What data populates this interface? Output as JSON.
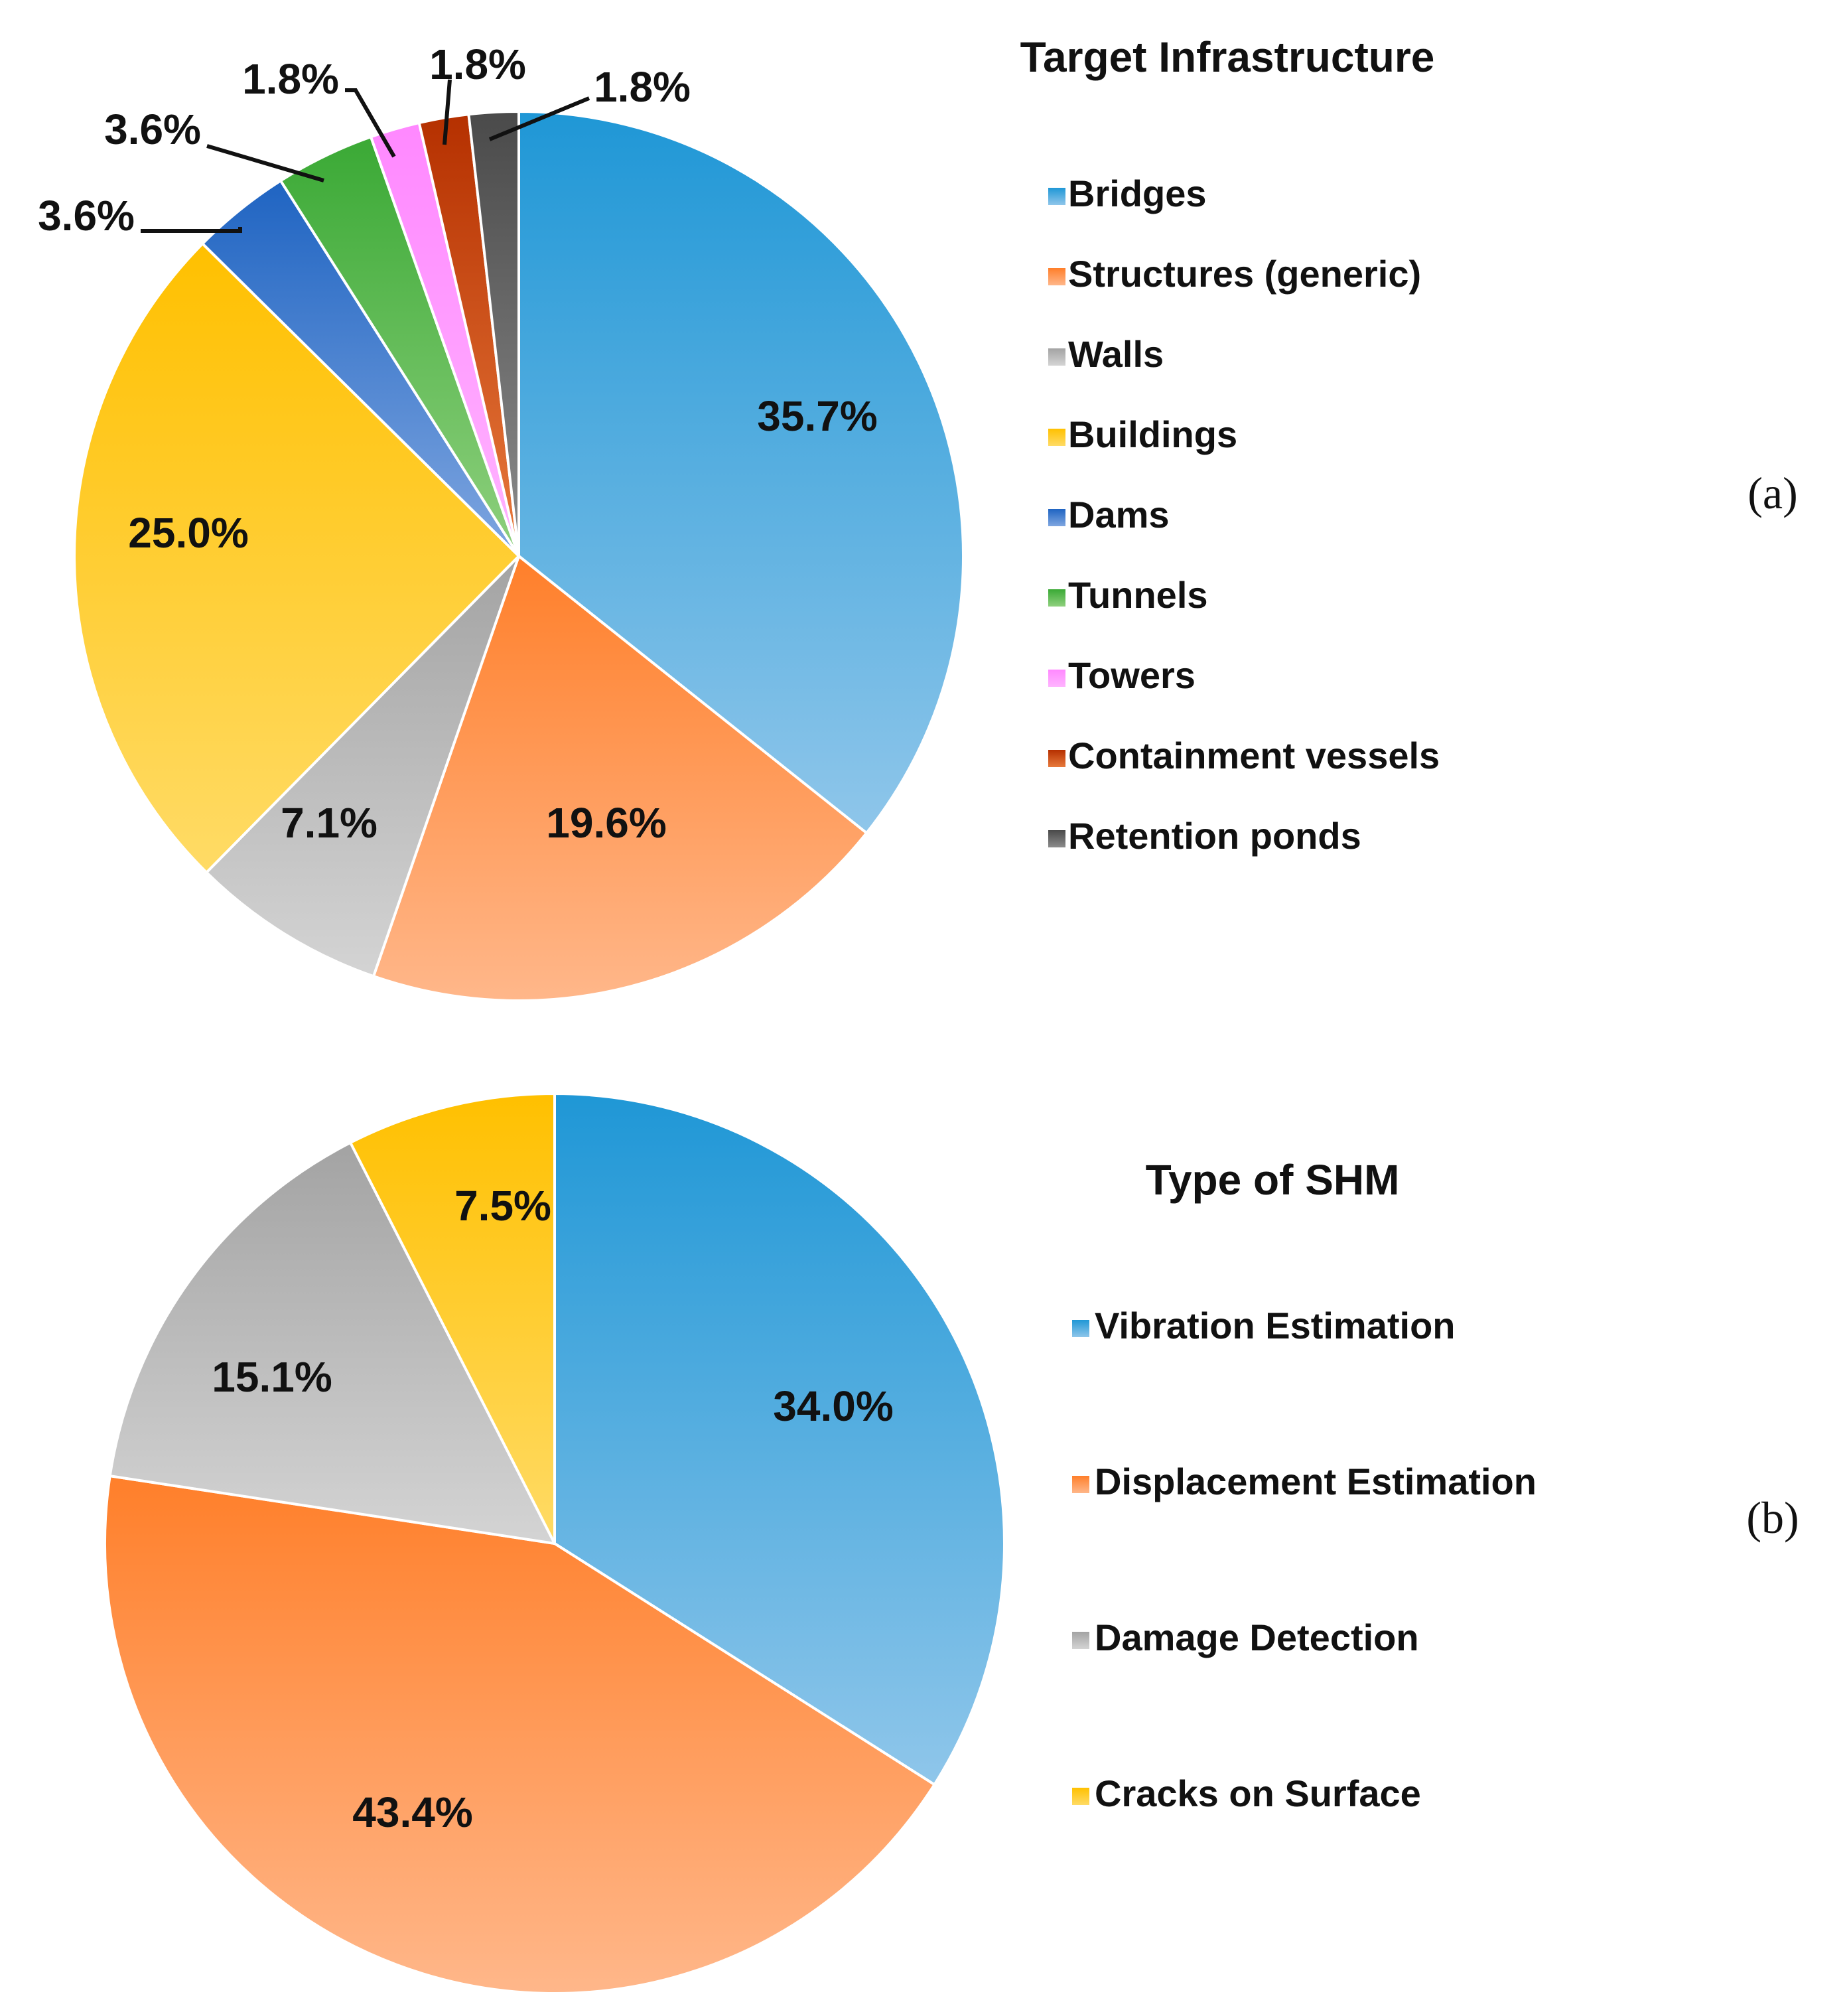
{
  "chart_data": [
    {
      "type": "pie",
      "panel": "(a)",
      "title": "Target Infrastructure",
      "categories": [
        "Bridges",
        "Structures (generic)",
        "Walls",
        "Buildings",
        "Dams",
        "Tunnels",
        "Towers",
        "Containment vessels",
        "Retention ponds"
      ],
      "values": [
        35.7,
        19.6,
        7.1,
        25.0,
        3.6,
        3.6,
        1.8,
        1.8,
        1.8
      ],
      "labels": [
        "35.7%",
        "19.6%",
        "7.1%",
        "25.0%",
        "3.6%",
        "3.6%",
        "1.8%",
        "1.8%",
        "1.8%"
      ],
      "colors": [
        [
          "#1f97d6",
          "#8fc6ea"
        ],
        [
          "#ff7f2a",
          "#ffb78a"
        ],
        [
          "#a3a3a3",
          "#d4d4d4"
        ],
        [
          "#ffc000",
          "#ffdb66"
        ],
        [
          "#1f64c2",
          "#7fa6e0"
        ],
        [
          "#3aa935",
          "#8fd07e"
        ],
        [
          "#ff88ff",
          "#ffb4ff"
        ],
        [
          "#b53000",
          "#e87a3c"
        ],
        [
          "#4a4a4a",
          "#8c8c8c"
        ]
      ],
      "legend_position": "right"
    },
    {
      "type": "pie",
      "panel": "(b)",
      "title": "Type of SHM",
      "categories": [
        "Vibration Estimation",
        "Displacement Estimation",
        "Damage Detection",
        "Cracks on Surface"
      ],
      "values": [
        34.0,
        43.4,
        15.1,
        7.5
      ],
      "labels": [
        "34.0%",
        "43.4%",
        "15.1%",
        "7.5%"
      ],
      "colors": [
        [
          "#1f97d6",
          "#8fc6ea"
        ],
        [
          "#ff7f2a",
          "#ffb78a"
        ],
        [
          "#a3a3a3",
          "#d4d4d4"
        ],
        [
          "#ffc000",
          "#ffdb66"
        ]
      ],
      "legend_position": "right"
    }
  ]
}
